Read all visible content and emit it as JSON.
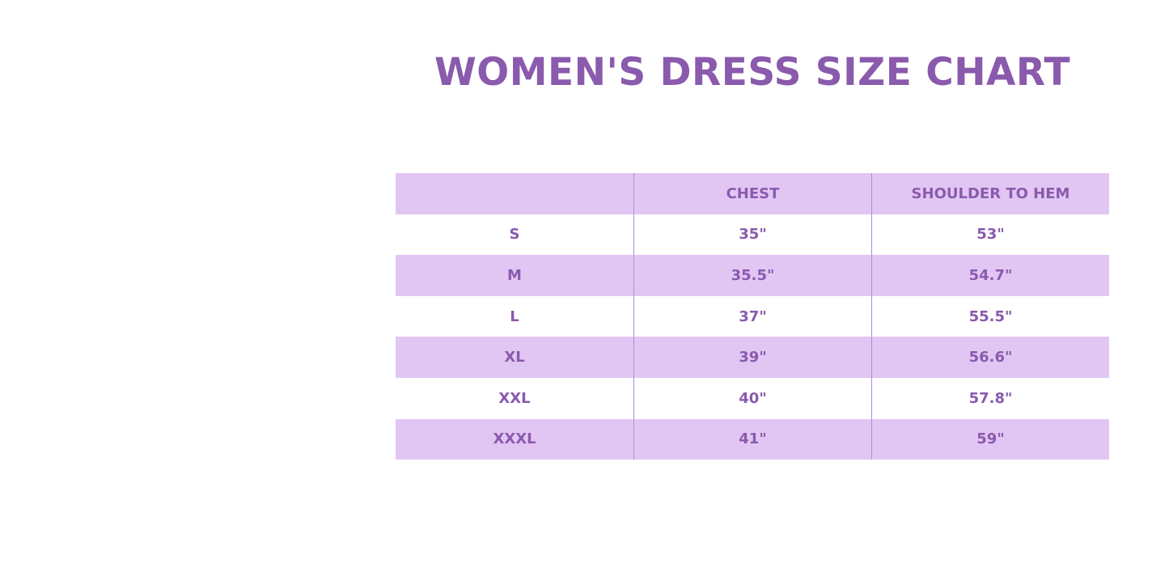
{
  "title": "WOMEN'S DRESS SIZE CHART",
  "colors": {
    "accent": "#8a5aad",
    "row_shade": "#e1c6f4",
    "divider": "#b48ad6"
  },
  "table": {
    "headers": [
      "",
      "CHEST",
      "SHOULDER TO HEM"
    ],
    "rows": [
      [
        "S",
        "35\"",
        "53\""
      ],
      [
        "M",
        "35.5\"",
        "54.7\""
      ],
      [
        "L",
        "37\"",
        "55.5\""
      ],
      [
        "XL",
        "39\"",
        "56.6\""
      ],
      [
        "XXL",
        "40\"",
        "57.8\""
      ],
      [
        "XXXL",
        "41\"",
        "59\""
      ]
    ]
  }
}
